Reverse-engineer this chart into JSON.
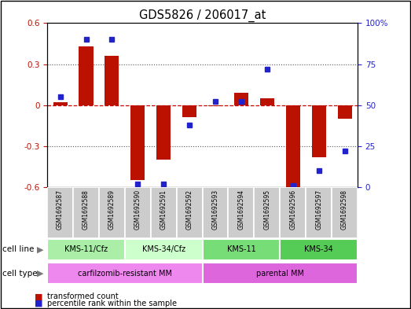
{
  "title": "GDS5826 / 206017_at",
  "samples": [
    "GSM1692587",
    "GSM1692588",
    "GSM1692589",
    "GSM1692590",
    "GSM1692591",
    "GSM1692592",
    "GSM1692593",
    "GSM1692594",
    "GSM1692595",
    "GSM1692596",
    "GSM1692597",
    "GSM1692598"
  ],
  "transformed_count": [
    0.02,
    0.43,
    0.36,
    -0.55,
    -0.4,
    -0.09,
    -0.01,
    0.09,
    0.05,
    -0.6,
    -0.38,
    -0.1
  ],
  "percentile_rank": [
    55,
    90,
    90,
    2,
    2,
    38,
    52,
    52,
    72,
    1,
    10,
    22
  ],
  "cell_line_groups": [
    {
      "label": "KMS-11/Cfz",
      "start": 0,
      "end": 3,
      "color": "#aaeea8"
    },
    {
      "label": "KMS-34/Cfz",
      "start": 3,
      "end": 6,
      "color": "#ccffcc"
    },
    {
      "label": "KMS-11",
      "start": 6,
      "end": 9,
      "color": "#77dd77"
    },
    {
      "label": "KMS-34",
      "start": 9,
      "end": 12,
      "color": "#55cc55"
    }
  ],
  "cell_type_groups": [
    {
      "label": "carfilzomib-resistant MM",
      "start": 0,
      "end": 6,
      "color": "#ee88ee"
    },
    {
      "label": "parental MM",
      "start": 6,
      "end": 12,
      "color": "#dd66dd"
    }
  ],
  "bar_color": "#bb1100",
  "dot_color": "#2222cc",
  "ylim_left": [
    -0.6,
    0.6
  ],
  "ylim_right": [
    0,
    100
  ],
  "yticks_left": [
    -0.6,
    -0.3,
    0.0,
    0.3,
    0.6
  ],
  "ytick_labels_left": [
    "-0.6",
    "-0.3",
    "0",
    "0.3",
    "0.6"
  ],
  "yticks_right": [
    0,
    25,
    50,
    75,
    100
  ],
  "ytick_labels_right": [
    "0",
    "25",
    "50",
    "75",
    "100%"
  ],
  "hline_color": "#cc0000",
  "dotted_color": "#555555",
  "legend_red": "transformed count",
  "legend_blue": "percentile rank within the sample",
  "plot_bg": "#ffffff",
  "sample_box_color": "#cccccc",
  "tick_fontsize": 7.5,
  "title_fontsize": 10.5
}
